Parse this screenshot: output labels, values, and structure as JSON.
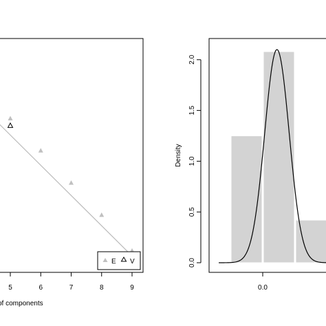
{
  "chart_data": [
    {
      "type": "scatter",
      "xlabel": "of components",
      "ylabel": "",
      "x_ticks": [
        "5",
        "6",
        "7",
        "8",
        "9"
      ],
      "xlim": [
        3.5,
        9.5
      ],
      "grid": false,
      "series": [
        {
          "name": "E",
          "marker": "filled-triangle",
          "color": "#c0c0c0",
          "x": [
            5,
            6,
            7,
            8,
            9
          ],
          "y": [
            0.8,
            0.62,
            0.44,
            0.26,
            0.06
          ]
        },
        {
          "name": "V",
          "marker": "open-triangle",
          "color": "#000000",
          "x": [
            5
          ],
          "y": [
            0.76
          ]
        }
      ],
      "trend_line": {
        "color": "#bbbbbb",
        "x": [
          3.5,
          9.0
        ],
        "y": [
          0.96,
          0.03
        ]
      },
      "ylim": [
        0,
        1
      ],
      "legend": {
        "placement": "bottom-right",
        "entries": [
          "E",
          "V"
        ]
      }
    },
    {
      "type": "bar",
      "subtype": "histogram-with-density",
      "xlabel": "",
      "ylabel": "Density",
      "y_ticks": [
        "0.0",
        "0.5",
        "1.0",
        "1.5",
        "2.0"
      ],
      "x_ticks": [
        "0.0"
      ],
      "bins": [
        {
          "from": -0.5,
          "to": 0.0,
          "density": 1.25
        },
        {
          "from": 0.0,
          "to": 0.5,
          "density": 2.08
        },
        {
          "from": 0.5,
          "to": 1.0,
          "density": 0.42
        }
      ],
      "bar_color": "#d3d3d3",
      "density_curve": {
        "mean": 0.22,
        "sd": 0.19,
        "color": "#000000"
      },
      "xlim": [
        -0.72,
        1.0
      ],
      "ylim": [
        0,
        2.2
      ]
    }
  ]
}
